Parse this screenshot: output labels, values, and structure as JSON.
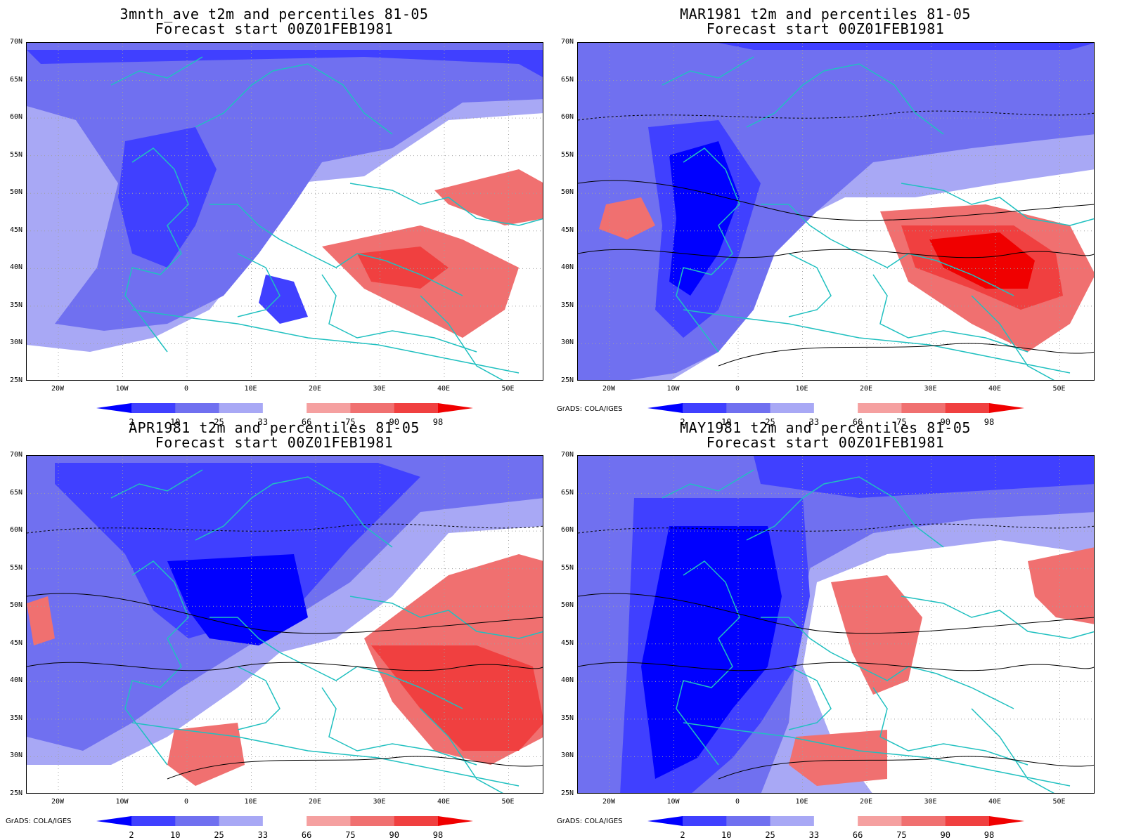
{
  "panels": [
    {
      "title1": "3mnth_ave t2m and percentiles 81-05",
      "title2": "Forecast start 00Z01FEB1981",
      "credit": ""
    },
    {
      "title1": "MAR1981 t2m and percentiles 81-05",
      "title2": "Forecast start 00Z01FEB1981",
      "credit": "GrADS: COLA/IGES"
    },
    {
      "title1": "APR1981 t2m and percentiles 81-05",
      "title2": "Forecast start 00Z01FEB1981",
      "credit": "GrADS: COLA/IGES"
    },
    {
      "title1": "MAY1981 t2m and percentiles 81-05",
      "title2": "Forecast start 00Z01FEB1981",
      "credit": "GrADS: COLA/IGES"
    }
  ],
  "axes": {
    "lat_labels": [
      "70N",
      "65N",
      "60N",
      "55N",
      "50N",
      "45N",
      "40N",
      "35N",
      "30N",
      "25N"
    ],
    "lon_labels": [
      "20W",
      "10W",
      "0",
      "10E",
      "20E",
      "30E",
      "40E",
      "50E"
    ]
  },
  "colorbar": {
    "labels": [
      "2",
      "10",
      "25",
      "33",
      "66",
      "75",
      "90",
      "98"
    ],
    "colors": [
      "#0000ff",
      "#4040ff",
      "#7070f0",
      "#a8a8f5",
      "#ffffff",
      "#f5a0a0",
      "#f07070",
      "#f04040",
      "#f00000"
    ]
  },
  "colors": {
    "coast": "#20c0c0",
    "grid": "#a0a0a0"
  }
}
